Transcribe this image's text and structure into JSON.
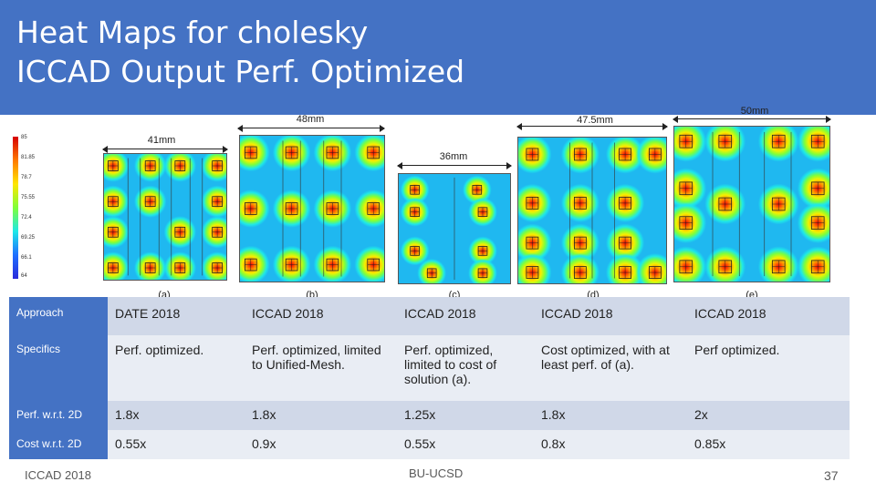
{
  "slide": {
    "title_line1": "Heat Maps for cholesky",
    "title_line2": "ICCAD Output Perf. Optimized",
    "colors": {
      "header": "#4472c4",
      "row_dark": "#d0d8e8",
      "row_light": "#e9edf4",
      "hot": "#d60000",
      "cool": "#2a2adb"
    }
  },
  "legend": {
    "ticks": [
      "85",
      "81.85",
      "78.7",
      "75.55",
      "72.4",
      "69.25",
      "66.1",
      "64"
    ]
  },
  "maps": [
    {
      "caption": "(a)",
      "dimension": "41mm"
    },
    {
      "caption": "(b)",
      "dimension": "48mm"
    },
    {
      "caption": "(c)",
      "dimension": "36mm"
    },
    {
      "caption": "(d)",
      "dimension": "47.5mm"
    },
    {
      "caption": "(e)",
      "dimension": "50mm"
    }
  ],
  "table": {
    "rows": [
      {
        "header": "Approach",
        "cells": [
          "DATE 2018",
          "ICCAD 2018",
          "ICCAD 2018",
          "ICCAD 2018",
          "ICCAD 2018"
        ]
      },
      {
        "header": "Specifics",
        "cells": [
          "Perf. optimized.",
          "Perf. optimized, limited to Unified-Mesh.",
          "Perf. optimized, limited to cost of solution (a).",
          "Cost optimized, with at least perf. of (a).",
          "Perf optimized."
        ]
      },
      {
        "header": "Perf. w.r.t. 2D",
        "cells": [
          "1.8x",
          "1.8x",
          "1.25x",
          "1.8x",
          "2x"
        ]
      },
      {
        "header": "Cost w.r.t. 2D",
        "cells": [
          "0.55x",
          "0.9x",
          "0.55x",
          "0.8x",
          "0.85x"
        ]
      }
    ]
  },
  "footer": {
    "left": "ICCAD 2018",
    "center": "BU-UCSD",
    "page": "37"
  }
}
